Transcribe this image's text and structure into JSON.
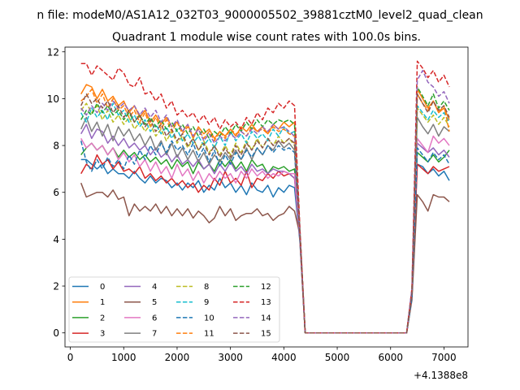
{
  "suptitle": "n file: modeM0/AS1A12_032T03_9000005502_39881cztM0_level2_quad_clean",
  "chart_data": {
    "type": "line",
    "title": "Quadrant 1 module wise count rates with 100.0s bins.",
    "xlabel": "",
    "ylabel": "",
    "x_offset_label": "+4.1388e8",
    "xlim": [
      -100,
      7450
    ],
    "ylim": [
      -0.6,
      12.2
    ],
    "x_ticks": [
      0,
      1000,
      2000,
      3000,
      4000,
      5000,
      6000,
      7000
    ],
    "y_ticks": [
      0,
      2,
      4,
      6,
      8,
      10,
      12
    ],
    "grid": false,
    "legend_position": "lower-left",
    "x": [
      200,
      300,
      400,
      500,
      600,
      700,
      800,
      900,
      1000,
      1100,
      1200,
      1300,
      1400,
      1500,
      1600,
      1700,
      1800,
      1900,
      2000,
      2100,
      2200,
      2300,
      2400,
      2500,
      2600,
      2700,
      2800,
      2900,
      3000,
      3100,
      3200,
      3300,
      3400,
      3500,
      3600,
      3700,
      3800,
      3900,
      4000,
      4100,
      4200,
      4300,
      4400,
      4500,
      4600,
      4700,
      4800,
      4900,
      5000,
      5100,
      5200,
      5300,
      5400,
      5500,
      5600,
      5700,
      5800,
      5900,
      6000,
      6100,
      6200,
      6300,
      6400,
      6500,
      6600,
      6700,
      6800,
      6900,
      7000,
      7100
    ],
    "series": [
      {
        "name": "0",
        "color": "#1f77b4",
        "dashed": false,
        "values": [
          7.4,
          7.4,
          7.2,
          7.0,
          7.2,
          6.8,
          7.0,
          6.8,
          6.8,
          6.6,
          6.9,
          6.6,
          6.4,
          6.7,
          6.4,
          6.6,
          6.5,
          6.2,
          6.4,
          6.1,
          6.4,
          6.2,
          6.5,
          6.0,
          6.3,
          6.1,
          6.6,
          6.2,
          6.4,
          6.0,
          6.3,
          5.9,
          6.4,
          6.1,
          6.0,
          6.3,
          5.8,
          6.2,
          6.0,
          6.3,
          6.2,
          3.9,
          0,
          0,
          0,
          0,
          0,
          0,
          0,
          0,
          0,
          0,
          0,
          0,
          0,
          0,
          0,
          0,
          0,
          0,
          0,
          0,
          1.5,
          7.2,
          7.1,
          6.8,
          7.0,
          6.7,
          6.9,
          6.5
        ]
      },
      {
        "name": "1",
        "color": "#ff7f0e",
        "dashed": false,
        "values": [
          10.2,
          10.6,
          10.5,
          10.0,
          10.4,
          9.9,
          10.1,
          9.7,
          9.9,
          9.4,
          9.7,
          9.2,
          9.5,
          9.0,
          9.3,
          8.9,
          9.2,
          8.8,
          9.0,
          8.6,
          8.9,
          8.3,
          8.8,
          8.5,
          8.7,
          8.3,
          8.6,
          8.4,
          8.7,
          8.4,
          8.8,
          8.6,
          8.9,
          8.6,
          8.8,
          8.5,
          8.9,
          8.7,
          9.0,
          8.8,
          9.0,
          4.2,
          0,
          0,
          0,
          0,
          0,
          0,
          0,
          0,
          0,
          0,
          0,
          0,
          0,
          0,
          0,
          0,
          0,
          0,
          0,
          0,
          1.7,
          10.4,
          10.0,
          9.6,
          9.9,
          9.4,
          9.6,
          9.1
        ]
      },
      {
        "name": "2",
        "color": "#2ca02c",
        "dashed": false,
        "values": [
          7.6,
          7.9,
          8.1,
          7.8,
          8.0,
          7.6,
          7.9,
          7.5,
          7.8,
          7.5,
          7.7,
          7.4,
          7.6,
          7.3,
          7.5,
          7.2,
          7.4,
          7.0,
          7.4,
          7.1,
          7.3,
          6.8,
          7.3,
          7.0,
          7.2,
          6.9,
          7.4,
          7.1,
          7.4,
          7.0,
          7.3,
          6.9,
          7.4,
          7.1,
          7.2,
          6.8,
          7.1,
          7.0,
          7.1,
          6.9,
          7.0,
          4.0,
          0,
          0,
          0,
          0,
          0,
          0,
          0,
          0,
          0,
          0,
          0,
          0,
          0,
          0,
          0,
          0,
          0,
          0,
          0,
          0,
          1.5,
          7.7,
          7.5,
          7.3,
          7.6,
          7.3,
          7.5,
          7.8
        ]
      },
      {
        "name": "3",
        "color": "#d62728",
        "dashed": false,
        "values": [
          6.8,
          7.2,
          7.0,
          7.6,
          7.2,
          7.4,
          7.0,
          7.3,
          6.9,
          7.0,
          6.8,
          7.1,
          6.6,
          6.8,
          6.5,
          6.7,
          6.4,
          6.6,
          6.3,
          6.5,
          6.2,
          6.4,
          6.0,
          6.3,
          6.1,
          6.6,
          6.3,
          6.9,
          6.4,
          6.6,
          6.3,
          6.9,
          6.2,
          6.6,
          6.5,
          6.8,
          6.6,
          6.9,
          6.7,
          6.8,
          6.6,
          4.0,
          0,
          0,
          0,
          0,
          0,
          0,
          0,
          0,
          0,
          0,
          0,
          0,
          0,
          0,
          0,
          0,
          0,
          0,
          0,
          0,
          1.6,
          7.2,
          7.0,
          6.8,
          7.1,
          6.9,
          7.0,
          7.1
        ]
      },
      {
        "name": "4",
        "color": "#9467bd",
        "dashed": false,
        "values": [
          8.5,
          8.9,
          8.3,
          8.7,
          8.6,
          8.1,
          8.4,
          8.0,
          8.3,
          7.9,
          8.1,
          7.8,
          8.0,
          7.6,
          7.9,
          7.5,
          7.7,
          7.3,
          7.6,
          7.2,
          7.4,
          7.1,
          7.4,
          7.0,
          7.2,
          6.8,
          7.2,
          6.9,
          7.3,
          6.9,
          7.1,
          6.8,
          7.2,
          6.9,
          7.0,
          6.8,
          7.0,
          6.9,
          6.9,
          6.8,
          6.6,
          4.1,
          0,
          0,
          0,
          0,
          0,
          0,
          0,
          0,
          0,
          0,
          0,
          0,
          0,
          0,
          0,
          0,
          0,
          0,
          0,
          0,
          1.6,
          8.1,
          7.9,
          7.7,
          7.9,
          7.6,
          7.8,
          7.5
        ]
      },
      {
        "name": "5",
        "color": "#8c564b",
        "dashed": false,
        "values": [
          6.4,
          5.8,
          5.9,
          6.0,
          6.0,
          5.8,
          6.1,
          5.7,
          5.8,
          5.0,
          5.5,
          5.2,
          5.4,
          5.2,
          5.5,
          5.1,
          5.4,
          5.0,
          5.3,
          5.0,
          5.3,
          4.9,
          5.2,
          5.0,
          4.7,
          4.9,
          5.4,
          5.0,
          5.3,
          4.8,
          5.0,
          5.1,
          5.1,
          5.3,
          5.0,
          5.1,
          4.8,
          5.0,
          5.1,
          5.4,
          5.2,
          4.2,
          0,
          0,
          0,
          0,
          0,
          0,
          0,
          0,
          0,
          0,
          0,
          0,
          0,
          0,
          0,
          0,
          0,
          0,
          0,
          0,
          1.4,
          5.9,
          5.6,
          5.2,
          5.9,
          5.8,
          5.8,
          5.6
        ]
      },
      {
        "name": "6",
        "color": "#e377c2",
        "dashed": false,
        "values": [
          8.3,
          7.9,
          8.1,
          7.8,
          8.0,
          7.6,
          7.9,
          7.4,
          7.7,
          7.3,
          7.6,
          7.1,
          7.4,
          6.9,
          7.3,
          6.8,
          7.1,
          6.6,
          7.2,
          6.7,
          7.0,
          6.5,
          6.9,
          6.4,
          6.8,
          6.5,
          6.9,
          6.6,
          6.8,
          6.4,
          6.9,
          6.6,
          7.0,
          6.7,
          6.9,
          6.6,
          6.8,
          6.7,
          6.9,
          6.8,
          6.8,
          4.0,
          0,
          0,
          0,
          0,
          0,
          0,
          0,
          0,
          0,
          0,
          0,
          0,
          0,
          0,
          0,
          0,
          0,
          0,
          0,
          0,
          1.6,
          8.3,
          8.0,
          7.7,
          8.4,
          8.1,
          8.3,
          8.0
        ]
      },
      {
        "name": "7",
        "color": "#7f7f7f",
        "dashed": false,
        "values": [
          8.7,
          9.2,
          8.6,
          9.0,
          8.4,
          8.9,
          8.2,
          8.8,
          8.4,
          8.7,
          8.2,
          8.5,
          8.0,
          8.4,
          7.8,
          8.2,
          7.6,
          8.1,
          7.5,
          7.9,
          7.4,
          7.8,
          7.3,
          7.7,
          7.2,
          7.6,
          7.3,
          7.7,
          7.4,
          7.8,
          7.4,
          7.9,
          7.4,
          7.9,
          7.6,
          8.0,
          7.8,
          8.2,
          7.9,
          8.1,
          7.8,
          4.2,
          0,
          0,
          0,
          0,
          0,
          0,
          0,
          0,
          0,
          0,
          0,
          0,
          0,
          0,
          0,
          0,
          0,
          0,
          0,
          0,
          1.7,
          9.2,
          8.8,
          8.5,
          8.9,
          8.4,
          8.8,
          8.6
        ]
      },
      {
        "name": "8",
        "color": "#bcbd22",
        "dashed": true,
        "values": [
          9.5,
          9.8,
          9.4,
          9.7,
          9.1,
          9.5,
          9.0,
          9.3,
          8.9,
          9.2,
          8.7,
          9.0,
          8.6,
          8.9,
          8.4,
          8.7,
          8.2,
          8.6,
          8.1,
          8.4,
          7.9,
          8.3,
          7.8,
          8.2,
          7.7,
          8.0,
          7.6,
          8.0,
          7.6,
          8.1,
          7.7,
          8.2,
          7.8,
          8.3,
          7.9,
          8.3,
          8.0,
          8.4,
          8.1,
          8.3,
          8.0,
          4.3,
          0,
          0,
          0,
          0,
          0,
          0,
          0,
          0,
          0,
          0,
          0,
          0,
          0,
          0,
          0,
          0,
          0,
          0,
          0,
          0,
          1.8,
          9.6,
          9.3,
          9.0,
          9.3,
          8.9,
          9.2,
          8.8
        ]
      },
      {
        "name": "9",
        "color": "#17becf",
        "dashed": true,
        "values": [
          9.4,
          9.0,
          9.6,
          9.2,
          9.5,
          9.1,
          9.8,
          9.3,
          9.5,
          9.0,
          9.3,
          8.8,
          9.1,
          8.6,
          8.9,
          8.5,
          8.8,
          8.3,
          8.7,
          8.2,
          8.5,
          8.1,
          8.4,
          8.0,
          8.3,
          7.9,
          8.4,
          8.0,
          8.6,
          8.2,
          8.5,
          8.1,
          8.6,
          8.3,
          8.5,
          8.2,
          8.7,
          8.4,
          8.8,
          8.5,
          8.6,
          4.4,
          0,
          0,
          0,
          0,
          0,
          0,
          0,
          0,
          0,
          0,
          0,
          0,
          0,
          0,
          0,
          0,
          0,
          0,
          0,
          0,
          1.8,
          9.7,
          9.4,
          9.1,
          9.5,
          9.2,
          9.4,
          9.0
        ]
      },
      {
        "name": "10",
        "color": "#1f77b4",
        "dashed": true,
        "values": [
          8.2,
          7.3,
          6.9,
          7.4,
          7.0,
          7.5,
          7.1,
          7.4,
          7.0,
          7.6,
          7.2,
          7.8,
          7.4,
          8.0,
          7.6,
          8.1,
          7.7,
          8.2,
          7.8,
          8.0,
          7.6,
          8.1,
          7.5,
          7.9,
          7.3,
          7.8,
          7.1,
          7.6,
          7.2,
          7.7,
          7.4,
          7.8,
          7.5,
          7.9,
          7.6,
          8.0,
          7.7,
          8.0,
          7.8,
          7.9,
          7.7,
          4.1,
          0,
          0,
          0,
          0,
          0,
          0,
          0,
          0,
          0,
          0,
          0,
          0,
          0,
          0,
          0,
          0,
          0,
          0,
          0,
          0,
          1.5,
          7.9,
          7.6,
          7.3,
          7.7,
          7.4,
          7.6,
          7.2
        ]
      },
      {
        "name": "11",
        "color": "#ff7f0e",
        "dashed": true,
        "values": [
          9.9,
          10.1,
          10.4,
          9.8,
          10.2,
          9.6,
          10.0,
          9.5,
          9.7,
          9.2,
          9.5,
          9.0,
          9.4,
          8.8,
          9.2,
          8.7,
          9.1,
          8.6,
          9.0,
          8.5,
          8.8,
          8.4,
          8.7,
          8.3,
          8.6,
          8.2,
          8.6,
          8.3,
          8.7,
          8.5,
          8.6,
          8.4,
          8.8,
          8.6,
          8.7,
          8.5,
          8.8,
          8.6,
          8.7,
          8.5,
          8.4,
          4.3,
          0,
          0,
          0,
          0,
          0,
          0,
          0,
          0,
          0,
          0,
          0,
          0,
          0,
          0,
          0,
          0,
          0,
          0,
          0,
          0,
          1.8,
          10.2,
          9.8,
          9.5,
          9.9,
          9.4,
          9.7,
          8.6
        ]
      },
      {
        "name": "12",
        "color": "#2ca02c",
        "dashed": true,
        "values": [
          9.1,
          9.5,
          9.3,
          9.8,
          9.4,
          9.7,
          9.3,
          9.5,
          9.1,
          9.4,
          9.0,
          9.3,
          8.9,
          9.2,
          8.8,
          9.1,
          8.7,
          9.0,
          8.6,
          8.9,
          8.5,
          8.8,
          8.4,
          8.7,
          8.3,
          8.6,
          8.4,
          8.8,
          8.5,
          8.9,
          8.6,
          9.0,
          8.7,
          9.1,
          8.8,
          9.1,
          8.9,
          9.1,
          9.0,
          9.1,
          8.9,
          4.4,
          0,
          0,
          0,
          0,
          0,
          0,
          0,
          0,
          0,
          0,
          0,
          0,
          0,
          0,
          0,
          0,
          0,
          0,
          0,
          0,
          1.8,
          10.5,
          10.1,
          9.7,
          10.2,
          9.6,
          9.9,
          9.5
        ]
      },
      {
        "name": "13",
        "color": "#d62728",
        "dashed": true,
        "values": [
          11.5,
          11.5,
          11.0,
          11.4,
          11.2,
          11.0,
          10.8,
          11.3,
          11.1,
          10.6,
          10.5,
          10.9,
          10.2,
          10.3,
          9.9,
          10.2,
          9.6,
          9.9,
          9.3,
          9.5,
          9.2,
          9.4,
          9.0,
          9.3,
          8.9,
          9.2,
          8.7,
          9.1,
          8.8,
          9.0,
          8.7,
          9.2,
          8.9,
          9.4,
          9.1,
          9.6,
          9.4,
          9.8,
          9.6,
          9.9,
          9.7,
          4.5,
          0,
          0,
          0,
          0,
          0,
          0,
          0,
          0,
          0,
          0,
          0,
          0,
          0,
          0,
          0,
          0,
          0,
          0,
          0,
          0,
          1.9,
          11.6,
          11.3,
          10.9,
          11.2,
          10.7,
          11.0,
          10.5
        ]
      },
      {
        "name": "14",
        "color": "#9467bd",
        "dashed": true,
        "values": [
          9.6,
          9.3,
          9.7,
          9.4,
          9.8,
          9.5,
          9.9,
          9.6,
          9.8,
          9.5,
          9.7,
          9.3,
          9.6,
          9.2,
          9.5,
          9.0,
          9.3,
          8.8,
          9.1,
          8.6,
          8.9,
          8.4,
          8.7,
          8.2,
          8.5,
          8.1,
          8.4,
          8.2,
          8.5,
          8.3,
          8.6,
          8.4,
          8.7,
          8.5,
          8.8,
          8.6,
          8.9,
          8.7,
          8.8,
          8.6,
          8.4,
          4.3,
          0,
          0,
          0,
          0,
          0,
          0,
          0,
          0,
          0,
          0,
          0,
          0,
          0,
          0,
          0,
          0,
          0,
          0,
          0,
          0,
          1.9,
          10.8,
          11.2,
          10.7,
          10.5,
          10.1,
          10.3,
          9.8
        ]
      },
      {
        "name": "15",
        "color": "#8c564b",
        "dashed": true,
        "values": [
          9.7,
          10.2,
          9.8,
          10.0,
          9.6,
          9.9,
          9.4,
          9.7,
          9.2,
          9.5,
          9.0,
          9.3,
          8.8,
          9.1,
          8.6,
          8.9,
          8.4,
          8.7,
          8.2,
          8.5,
          8.0,
          8.3,
          7.8,
          8.1,
          7.6,
          8.0,
          7.5,
          7.9,
          7.5,
          8.0,
          7.6,
          8.1,
          7.8,
          8.2,
          7.9,
          8.3,
          8.0,
          8.2,
          8.1,
          8.3,
          8.1,
          4.2,
          0,
          0,
          0,
          0,
          0,
          0,
          0,
          0,
          0,
          0,
          0,
          0,
          0,
          0,
          0,
          0,
          0,
          0,
          0,
          0,
          1.7,
          10.2,
          9.8,
          9.4,
          9.9,
          9.5,
          9.7,
          9.2
        ]
      }
    ]
  }
}
